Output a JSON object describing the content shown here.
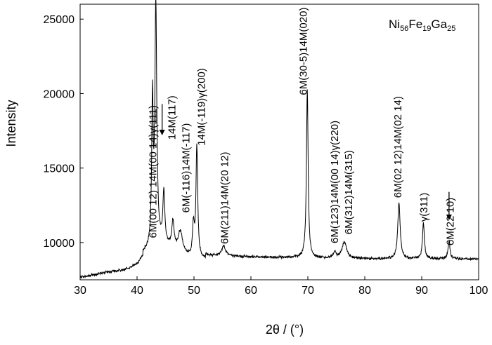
{
  "chart_data": {
    "type": "line",
    "title": "",
    "sample_label": {
      "parts": [
        {
          "text": "Ni",
          "sub": false
        },
        {
          "text": "56",
          "sub": true
        },
        {
          "text": "Fe",
          "sub": false
        },
        {
          "text": "19",
          "sub": true
        },
        {
          "text": "Ga",
          "sub": false
        },
        {
          "text": "25",
          "sub": true
        }
      ]
    },
    "xlabel": "2θ / (°)",
    "ylabel": "Intensity",
    "xlim": [
      30,
      100
    ],
    "ylim": [
      7500,
      26000
    ],
    "xticks": [
      30,
      40,
      50,
      60,
      70,
      80,
      90,
      100
    ],
    "yticks": [
      10000,
      15000,
      20000,
      25000
    ],
    "grid": false,
    "baseline": [
      [
        30,
        7650
      ],
      [
        32,
        7800
      ],
      [
        34,
        7950
      ],
      [
        36,
        8050
      ],
      [
        38,
        8150
      ],
      [
        40,
        8300
      ],
      [
        41,
        8600
      ]
    ],
    "peaks": [
      {
        "center": 42.7,
        "height": 9500,
        "width": 0.15
      },
      {
        "center": 43.3,
        "height": 16200,
        "width": 0.2
      },
      {
        "center": 44.7,
        "height": 3500,
        "width": 0.2
      },
      {
        "center": 46.3,
        "height": 1800,
        "width": 0.25
      },
      {
        "center": 47.6,
        "height": 1500,
        "width": 0.5
      },
      {
        "center": 49.9,
        "height": 2100,
        "width": 0.2
      },
      {
        "center": 50.5,
        "height": 7400,
        "width": 0.18
      },
      {
        "center": 55.2,
        "height": 700,
        "width": 0.4
      },
      {
        "center": 69.9,
        "height": 11300,
        "width": 0.18
      },
      {
        "center": 74.7,
        "height": 400,
        "width": 0.3
      },
      {
        "center": 76.4,
        "height": 1100,
        "width": 0.5
      },
      {
        "center": 86.0,
        "height": 3800,
        "width": 0.25
      },
      {
        "center": 90.3,
        "height": 2400,
        "width": 0.2
      },
      {
        "center": 94.8,
        "height": 1200,
        "width": 0.2
      }
    ],
    "annotations": [
      {
        "x": 43.4,
        "label": "6M(00 12) 14M(00 14)γ(111)",
        "bottom": 10300
      },
      {
        "x": 46.7,
        "label": "14M(117)",
        "bottom": 16900
      },
      {
        "x": 49.2,
        "label": "6M(-116)14M(-117)",
        "bottom": 12000
      },
      {
        "x": 51.9,
        "label": "14M(-119)γ(200)",
        "bottom": 16500
      },
      {
        "x": 56.0,
        "label": "6M(211)14M(20 12)",
        "bottom": 9900
      },
      {
        "x": 69.8,
        "label": "6M(30-5)14M(020)",
        "bottom": 19900
      },
      {
        "x": 75.3,
        "label": "6M(123)14M(00 14)γ(220)",
        "bottom": 9950
      },
      {
        "x": 77.8,
        "label": "6M(312)14M(315)",
        "bottom": 10550
      },
      {
        "x": 86.4,
        "label": "6M(02 12)14M(02 14)",
        "bottom": 13000
      },
      {
        "x": 91.0,
        "label": "γ(311)",
        "bottom": 11400
      },
      {
        "x": 95.6,
        "label": "6M(22 10)",
        "bottom": 9800
      }
    ],
    "arrows": [
      {
        "x": 44.4,
        "from": 19300,
        "to": 17200
      },
      {
        "x": 94.8,
        "from": 13400,
        "to": 11500
      }
    ]
  }
}
